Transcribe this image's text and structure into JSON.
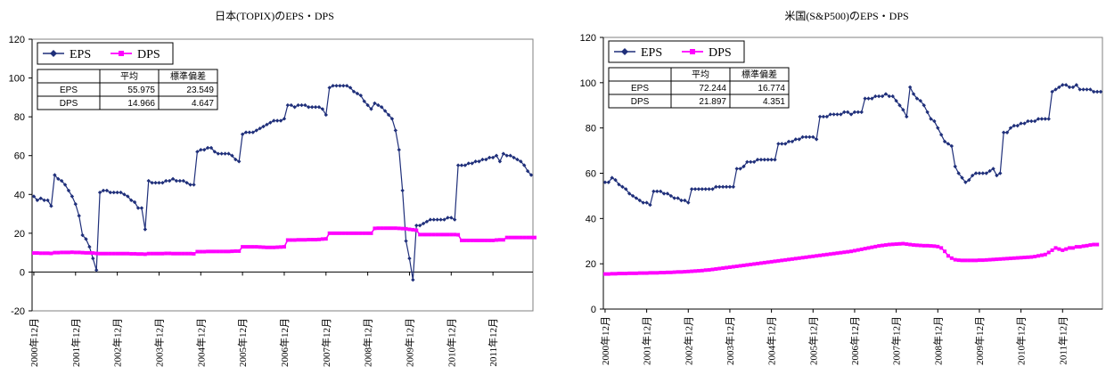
{
  "colors": {
    "eps": "#1f2f7a",
    "dps": "#ff00ff",
    "axis": "#000000"
  },
  "chart_data": [
    {
      "type": "line",
      "title": "日本(TOPIX)のEPS・DPS",
      "ylim": [
        -20,
        120
      ],
      "yticks": [
        -20,
        0,
        20,
        40,
        60,
        80,
        100,
        120
      ],
      "xticks": [
        "2000年12月",
        "2001年12月",
        "2002年12月",
        "2003年12月",
        "2004年12月",
        "2005年12月",
        "2006年12月",
        "2007年12月",
        "2008年12月",
        "2009年12月",
        "2010年12月",
        "2011年12月"
      ],
      "legend": [
        "EPS",
        "DPS"
      ],
      "stats": {
        "headers": [
          "",
          "平均",
          "標準偏差"
        ],
        "rows": [
          [
            "EPS",
            "55.975",
            "23.549"
          ],
          [
            "DPS",
            "14.966",
            "4.647"
          ]
        ]
      },
      "series": [
        {
          "name": "EPS",
          "marker": "diamond",
          "values": [
            39,
            37,
            38,
            37,
            37,
            34,
            50,
            48,
            47,
            45,
            42,
            39,
            35,
            29,
            19,
            17,
            13,
            7,
            1,
            41,
            42,
            42,
            41,
            41,
            41,
            41,
            40,
            39,
            37,
            36,
            33,
            33,
            22,
            47,
            46,
            46,
            46,
            46,
            47,
            47,
            48,
            47,
            47,
            47,
            46,
            45,
            45,
            62,
            63,
            63,
            64,
            64,
            62,
            61,
            61,
            61,
            61,
            60,
            58,
            57,
            71,
            72,
            72,
            72,
            73,
            74,
            75,
            76,
            77,
            78,
            78,
            78,
            79,
            86,
            86,
            85,
            86,
            86,
            86,
            85,
            85,
            85,
            85,
            84,
            81,
            95,
            96,
            96,
            96,
            96,
            96,
            95,
            93,
            92,
            91,
            88,
            86,
            84,
            87,
            86,
            85,
            83,
            81,
            79,
            73,
            63,
            42,
            16,
            7,
            -4,
            24,
            24,
            25,
            26,
            27,
            27,
            27,
            27,
            27,
            28,
            28,
            27,
            55,
            55,
            55,
            56,
            56,
            57,
            57,
            58,
            58,
            59,
            59,
            60,
            57,
            61,
            60,
            60,
            59,
            58,
            57,
            55,
            52,
            50
          ]
        },
        {
          "name": "DPS",
          "marker": "square",
          "values": [
            9.8,
            9.8,
            9.7,
            9.7,
            9.7,
            9.6,
            10,
            10,
            10.1,
            10.1,
            10.1,
            10.2,
            10.1,
            10.1,
            10,
            9.9,
            9.9,
            9.8,
            9.6,
            9.5,
            9.5,
            9.5,
            9.5,
            9.5,
            9.5,
            9.5,
            9.5,
            9.5,
            9.4,
            9.4,
            9.3,
            9.3,
            9.2,
            9.5,
            9.5,
            9.5,
            9.5,
            9.5,
            9.6,
            9.6,
            9.5,
            9.5,
            9.5,
            9.5,
            9.5,
            9.5,
            9.4,
            10.5,
            10.5,
            10.5,
            10.6,
            10.6,
            10.6,
            10.6,
            10.6,
            10.6,
            10.6,
            10.7,
            10.8,
            10.8,
            13,
            13,
            13,
            13,
            13,
            12.9,
            12.8,
            12.7,
            12.7,
            12.7,
            12.8,
            12.9,
            13,
            16.5,
            16.5,
            16.5,
            16.6,
            16.6,
            16.6,
            16.7,
            16.7,
            16.7,
            16.8,
            17,
            17.1,
            20,
            20,
            20,
            20,
            20,
            20,
            20,
            20,
            20,
            20,
            20,
            20,
            20,
            22.5,
            22.6,
            22.6,
            22.6,
            22.6,
            22.6,
            22.6,
            22.5,
            22.4,
            22.3,
            22,
            21.8,
            21.5,
            19.3,
            19.3,
            19.3,
            19.3,
            19.3,
            19.3,
            19.3,
            19.3,
            19.3,
            19.3,
            19.3,
            19.2,
            16.3,
            16.3,
            16.3,
            16.3,
            16.3,
            16.3,
            16.3,
            16.3,
            16.3,
            16.3,
            16.5,
            16.6,
            16.6,
            17.8,
            17.8,
            17.8,
            17.8,
            17.8,
            17.8,
            17.8,
            17.8,
            17.8
          ]
        }
      ]
    },
    {
      "type": "line",
      "title": "米国(S&P500)のEPS・DPS",
      "ylim": [
        0,
        120
      ],
      "yticks": [
        0,
        20,
        40,
        60,
        80,
        100,
        120
      ],
      "xticks": [
        "2000年12月",
        "2001年12月",
        "2002年12月",
        "2003年12月",
        "2004年12月",
        "2005年12月",
        "2006年12月",
        "2007年12月",
        "2008年12月",
        "2009年12月",
        "2010年12月",
        "2011年12月"
      ],
      "legend": [
        "EPS",
        "DPS"
      ],
      "stats": {
        "headers": [
          "",
          "平均",
          "標準偏差"
        ],
        "rows": [
          [
            "EPS",
            "72.244",
            "16.774"
          ],
          [
            "DPS",
            "21.897",
            "4.351"
          ]
        ]
      },
      "series": [
        {
          "name": "EPS",
          "marker": "diamond",
          "values": [
            56,
            56,
            58,
            57,
            55,
            54,
            53,
            51,
            50,
            49,
            48,
            47,
            47,
            46,
            52,
            52,
            52,
            51,
            51,
            50,
            49,
            49,
            48,
            48,
            47,
            53,
            53,
            53,
            53,
            53,
            53,
            53,
            54,
            54,
            54,
            54,
            54,
            54,
            62,
            62,
            63,
            65,
            65,
            65,
            66,
            66,
            66,
            66,
            66,
            66,
            73,
            73,
            73,
            74,
            74,
            75,
            75,
            76,
            76,
            76,
            76,
            75,
            85,
            85,
            85,
            86,
            86,
            86,
            86,
            87,
            87,
            86,
            87,
            87,
            87,
            93,
            93,
            93,
            94,
            94,
            94,
            95,
            94,
            94,
            92,
            90,
            88,
            85,
            98,
            95,
            93,
            92,
            90,
            87,
            84,
            83,
            80,
            77,
            74,
            73,
            72,
            63,
            60,
            58,
            56,
            57,
            59,
            60,
            60,
            60,
            60,
            61,
            62,
            59,
            60,
            78,
            78,
            80,
            81,
            81,
            82,
            82,
            83,
            83,
            83,
            84,
            84,
            84,
            84,
            96,
            97,
            98,
            99,
            99,
            98,
            98,
            99,
            97,
            97,
            97,
            97,
            96,
            96,
            96
          ]
        },
        {
          "name": "DPS",
          "marker": "square",
          "values": [
            15.5,
            15.5,
            15.6,
            15.6,
            15.7,
            15.7,
            15.7,
            15.8,
            15.8,
            15.8,
            15.9,
            15.9,
            15.9,
            16,
            16,
            16,
            16.1,
            16.1,
            16.2,
            16.2,
            16.3,
            16.4,
            16.4,
            16.5,
            16.6,
            16.7,
            16.8,
            16.9,
            17,
            17.2,
            17.3,
            17.5,
            17.7,
            17.9,
            18.1,
            18.3,
            18.5,
            18.7,
            18.9,
            19.1,
            19.3,
            19.5,
            19.7,
            19.9,
            20.1,
            20.3,
            20.5,
            20.7,
            20.9,
            21.1,
            21.3,
            21.5,
            21.7,
            21.9,
            22.1,
            22.3,
            22.5,
            22.7,
            22.9,
            23.1,
            23.3,
            23.5,
            23.7,
            23.9,
            24.1,
            24.3,
            24.5,
            24.7,
            24.9,
            25.1,
            25.3,
            25.5,
            25.8,
            26.1,
            26.4,
            26.7,
            27,
            27.3,
            27.6,
            27.9,
            28.1,
            28.3,
            28.5,
            28.6,
            28.7,
            28.8,
            28.9,
            28.7,
            28.5,
            28.3,
            28.2,
            28.1,
            28,
            28,
            27.9,
            27.8,
            27.6,
            27,
            25.5,
            23.5,
            22.5,
            21.8,
            21.6,
            21.5,
            21.5,
            21.5,
            21.5,
            21.5,
            21.6,
            21.6,
            21.7,
            21.8,
            21.9,
            22,
            22.1,
            22.2,
            22.3,
            22.4,
            22.5,
            22.6,
            22.7,
            22.8,
            22.9,
            23,
            23.2,
            23.5,
            23.8,
            24.1,
            25,
            26,
            27,
            26.5,
            26,
            26.5,
            27,
            27,
            27.5,
            27.5,
            27.8,
            28,
            28.3,
            28.5,
            28.5
          ]
        }
      ]
    }
  ]
}
